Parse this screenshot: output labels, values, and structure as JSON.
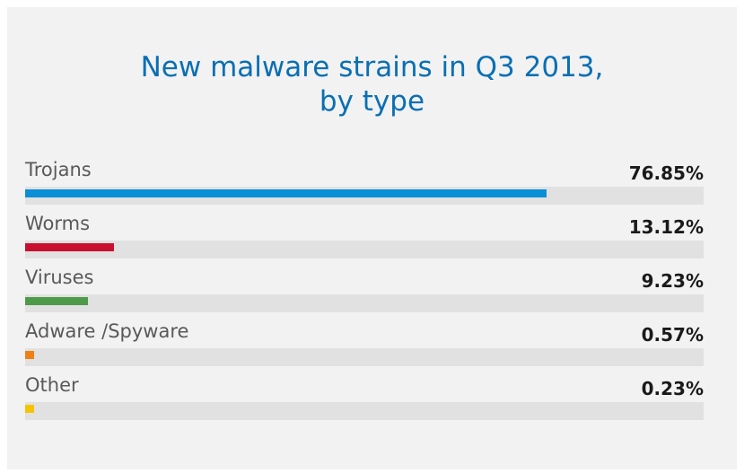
{
  "chart_data": {
    "type": "bar",
    "title_lines": [
      "New malware strains in Q3 2013,",
      "by type"
    ],
    "categories": [
      "Trojans",
      "Worms",
      "Viruses",
      "Adware /Spyware",
      "Other"
    ],
    "values": [
      76.85,
      13.12,
      9.23,
      0.57,
      0.23
    ],
    "value_labels": [
      "76.85%",
      "13.12%",
      "9.23%",
      "0.57%",
      "0.23%"
    ],
    "colors": [
      "#0a8fd6",
      "#c8102e",
      "#4e9a48",
      "#f07f17",
      "#f5c400"
    ],
    "xlim": [
      0,
      100
    ],
    "orientation": "horizontal"
  }
}
